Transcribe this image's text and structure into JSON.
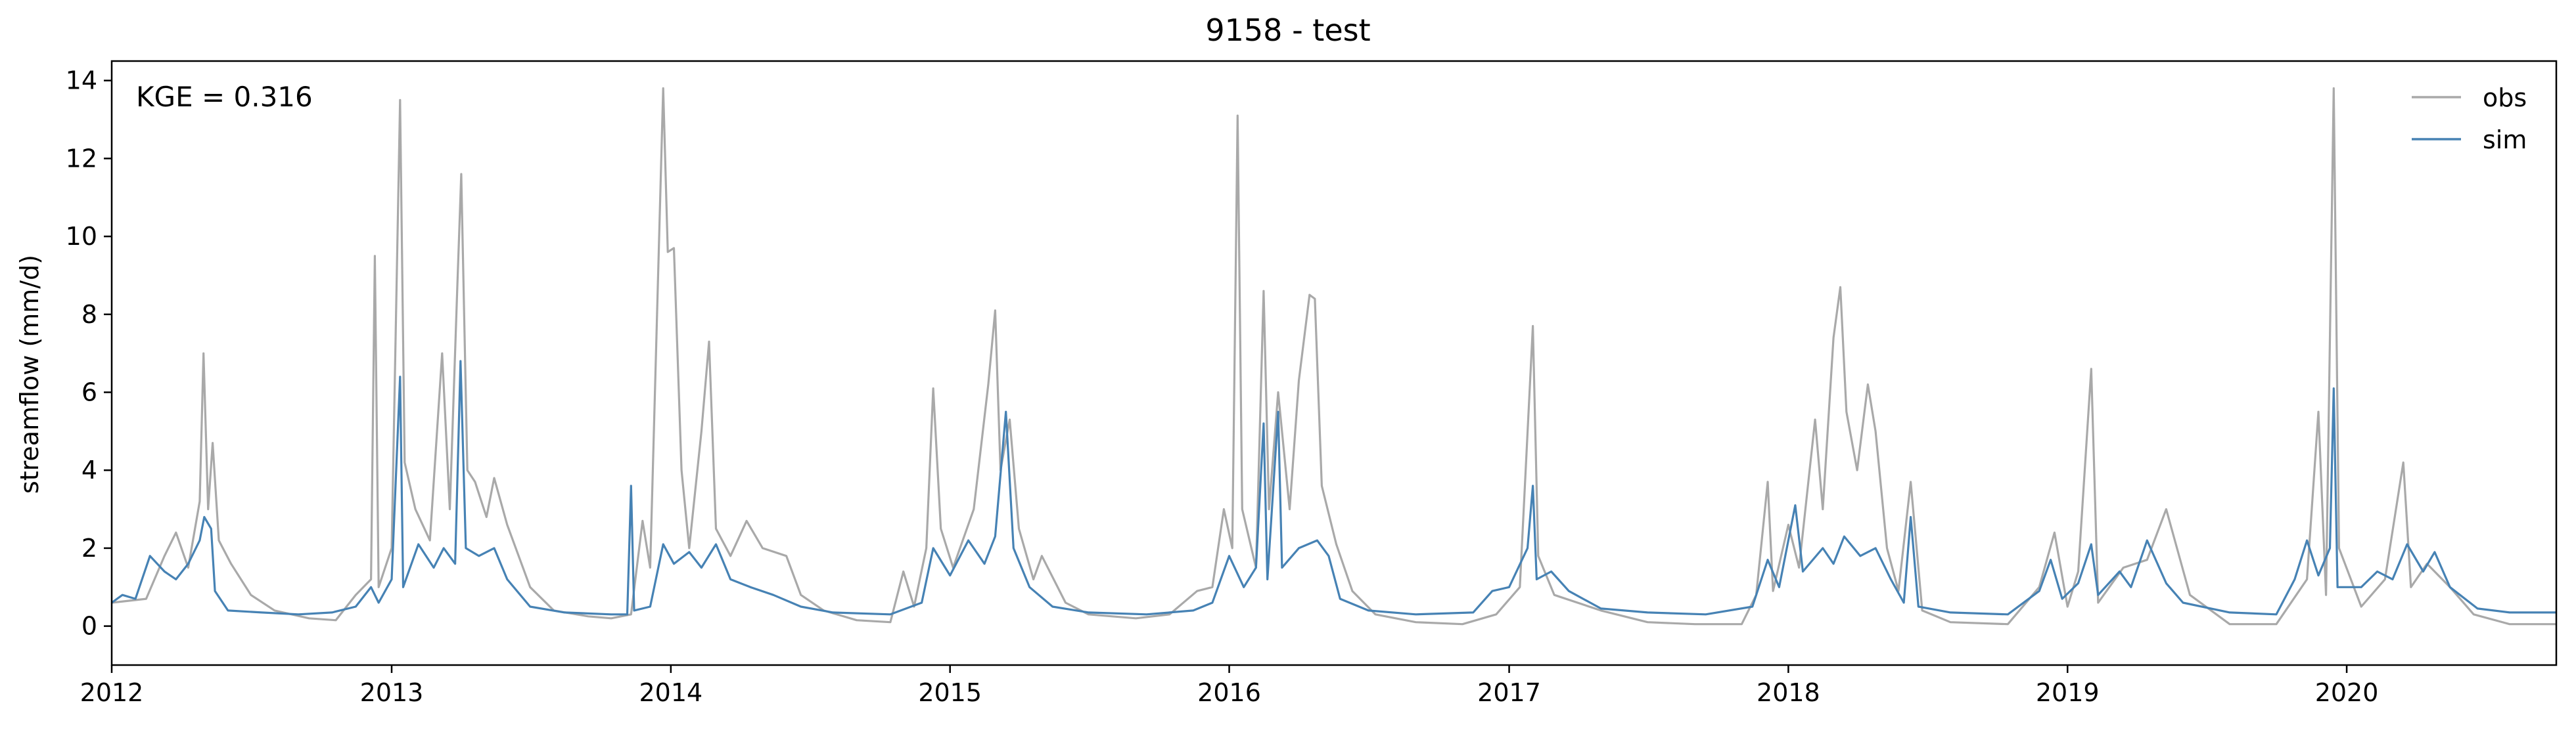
{
  "chart_data": {
    "type": "line",
    "title": "9158 - test",
    "xlabel": "",
    "ylabel": "streamflow (mm/d)",
    "annotation": "KGE = 0.316",
    "xlim": [
      "2012-01-01",
      "2020-10-01"
    ],
    "ylim": [
      -1,
      14.5
    ],
    "x_ticks": [
      "2012",
      "2013",
      "2014",
      "2015",
      "2016",
      "2017",
      "2018",
      "2019",
      "2020"
    ],
    "y_ticks": [
      0,
      2,
      4,
      6,
      8,
      10,
      12,
      14
    ],
    "grid": false,
    "legend": "top-right",
    "series": [
      {
        "name": "obs",
        "color": "#a9a9a9",
        "points": [
          [
            "2012-01-01",
            0.6
          ],
          [
            "2012-02-15",
            0.7
          ],
          [
            "2012-03-10",
            1.8
          ],
          [
            "2012-03-25",
            2.4
          ],
          [
            "2012-04-10",
            1.5
          ],
          [
            "2012-04-25",
            3.2
          ],
          [
            "2012-04-30",
            7.0
          ],
          [
            "2012-05-06",
            3.0
          ],
          [
            "2012-05-12",
            4.7
          ],
          [
            "2012-05-20",
            2.2
          ],
          [
            "2012-06-05",
            1.6
          ],
          [
            "2012-07-01",
            0.8
          ],
          [
            "2012-08-01",
            0.4
          ],
          [
            "2012-09-15",
            0.2
          ],
          [
            "2012-10-20",
            0.15
          ],
          [
            "2012-11-15",
            0.8
          ],
          [
            "2012-12-05",
            1.2
          ],
          [
            "2012-12-10",
            9.5
          ],
          [
            "2012-12-15",
            1.0
          ],
          [
            "2013-01-01",
            2.0
          ],
          [
            "2013-01-12",
            13.5
          ],
          [
            "2013-01-18",
            4.2
          ],
          [
            "2013-02-01",
            3.0
          ],
          [
            "2013-02-20",
            2.2
          ],
          [
            "2013-03-08",
            7.0
          ],
          [
            "2013-03-18",
            3.0
          ],
          [
            "2013-03-28",
            8.8
          ],
          [
            "2013-04-02",
            11.6
          ],
          [
            "2013-04-10",
            4.0
          ],
          [
            "2013-04-20",
            3.7
          ],
          [
            "2013-05-05",
            2.8
          ],
          [
            "2013-05-15",
            3.8
          ],
          [
            "2013-06-01",
            2.6
          ],
          [
            "2013-07-01",
            1.0
          ],
          [
            "2013-08-01",
            0.4
          ],
          [
            "2013-09-15",
            0.25
          ],
          [
            "2013-10-15",
            0.2
          ],
          [
            "2013-11-10",
            0.3
          ],
          [
            "2013-11-25",
            2.7
          ],
          [
            "2013-12-05",
            1.5
          ],
          [
            "2013-12-22",
            13.8
          ],
          [
            "2013-12-28",
            9.6
          ],
          [
            "2014-01-05",
            9.7
          ],
          [
            "2014-01-15",
            4.0
          ],
          [
            "2014-01-25",
            2.0
          ],
          [
            "2014-02-10",
            5.0
          ],
          [
            "2014-02-20",
            7.3
          ],
          [
            "2014-03-01",
            2.5
          ],
          [
            "2014-03-20",
            1.8
          ],
          [
            "2014-04-10",
            2.7
          ],
          [
            "2014-05-01",
            2.0
          ],
          [
            "2014-06-01",
            1.8
          ],
          [
            "2014-06-20",
            0.8
          ],
          [
            "2014-07-20",
            0.4
          ],
          [
            "2014-09-01",
            0.15
          ],
          [
            "2014-10-15",
            0.1
          ],
          [
            "2014-11-01",
            1.4
          ],
          [
            "2014-11-15",
            0.5
          ],
          [
            "2014-12-01",
            2.0
          ],
          [
            "2014-12-10",
            6.1
          ],
          [
            "2014-12-20",
            2.5
          ],
          [
            "2015-01-05",
            1.5
          ],
          [
            "2015-02-01",
            3.0
          ],
          [
            "2015-02-20",
            6.2
          ],
          [
            "2015-03-01",
            8.1
          ],
          [
            "2015-03-08",
            4.0
          ],
          [
            "2015-03-20",
            5.3
          ],
          [
            "2015-04-01",
            2.5
          ],
          [
            "2015-04-20",
            1.2
          ],
          [
            "2015-05-01",
            1.8
          ],
          [
            "2015-06-01",
            0.6
          ],
          [
            "2015-07-01",
            0.3
          ],
          [
            "2015-09-01",
            0.2
          ],
          [
            "2015-10-15",
            0.3
          ],
          [
            "2015-11-20",
            0.9
          ],
          [
            "2015-12-10",
            1.0
          ],
          [
            "2015-12-25",
            3.0
          ],
          [
            "2016-01-05",
            2.0
          ],
          [
            "2016-01-12",
            13.1
          ],
          [
            "2016-01-18",
            3.0
          ],
          [
            "2016-02-05",
            1.5
          ],
          [
            "2016-02-15",
            8.6
          ],
          [
            "2016-02-22",
            3.0
          ],
          [
            "2016-03-05",
            6.0
          ],
          [
            "2016-03-20",
            3.0
          ],
          [
            "2016-04-01",
            6.3
          ],
          [
            "2016-04-15",
            8.5
          ],
          [
            "2016-04-22",
            8.4
          ],
          [
            "2016-05-01",
            3.6
          ],
          [
            "2016-05-20",
            2.1
          ],
          [
            "2016-06-10",
            0.9
          ],
          [
            "2016-07-10",
            0.3
          ],
          [
            "2016-09-01",
            0.1
          ],
          [
            "2016-11-01",
            0.05
          ],
          [
            "2016-12-15",
            0.3
          ],
          [
            "2017-01-15",
            1.0
          ],
          [
            "2017-02-01",
            7.7
          ],
          [
            "2017-02-08",
            1.8
          ],
          [
            "2017-03-01",
            0.8
          ],
          [
            "2017-05-01",
            0.4
          ],
          [
            "2017-07-01",
            0.1
          ],
          [
            "2017-09-01",
            0.05
          ],
          [
            "2017-11-01",
            0.05
          ],
          [
            "2017-11-20",
            0.8
          ],
          [
            "2017-12-05",
            3.7
          ],
          [
            "2017-12-12",
            0.9
          ],
          [
            "2018-01-01",
            2.6
          ],
          [
            "2018-01-15",
            1.5
          ],
          [
            "2018-02-05",
            5.3
          ],
          [
            "2018-02-15",
            3.0
          ],
          [
            "2018-03-01",
            7.4
          ],
          [
            "2018-03-10",
            8.7
          ],
          [
            "2018-03-18",
            5.5
          ],
          [
            "2018-04-01",
            4.0
          ],
          [
            "2018-04-15",
            6.2
          ],
          [
            "2018-04-25",
            5.0
          ],
          [
            "2018-05-10",
            2.0
          ],
          [
            "2018-05-25",
            0.9
          ],
          [
            "2018-06-10",
            3.7
          ],
          [
            "2018-06-25",
            0.4
          ],
          [
            "2018-08-01",
            0.1
          ],
          [
            "2018-10-15",
            0.05
          ],
          [
            "2018-11-25",
            1.0
          ],
          [
            "2018-12-15",
            2.4
          ],
          [
            "2019-01-01",
            0.5
          ],
          [
            "2019-01-15",
            1.4
          ],
          [
            "2019-02-01",
            6.6
          ],
          [
            "2019-02-10",
            0.6
          ],
          [
            "2019-03-15",
            1.5
          ],
          [
            "2019-04-15",
            1.7
          ],
          [
            "2019-05-10",
            3.0
          ],
          [
            "2019-06-10",
            0.8
          ],
          [
            "2019-08-01",
            0.05
          ],
          [
            "2019-10-01",
            0.05
          ],
          [
            "2019-11-10",
            1.2
          ],
          [
            "2019-11-25",
            5.5
          ],
          [
            "2019-12-05",
            0.8
          ],
          [
            "2019-12-15",
            13.8
          ],
          [
            "2019-12-22",
            2.0
          ],
          [
            "2020-01-20",
            0.5
          ],
          [
            "2020-02-20",
            1.2
          ],
          [
            "2020-03-15",
            4.2
          ],
          [
            "2020-03-25",
            1.0
          ],
          [
            "2020-04-15",
            1.6
          ],
          [
            "2020-05-15",
            1.0
          ],
          [
            "2020-06-15",
            0.3
          ],
          [
            "2020-08-01",
            0.05
          ],
          [
            "2020-10-01",
            0.05
          ]
        ]
      },
      {
        "name": "sim",
        "color": "#4682b4",
        "points": [
          [
            "2012-01-01",
            0.6
          ],
          [
            "2012-01-15",
            0.8
          ],
          [
            "2012-02-01",
            0.7
          ],
          [
            "2012-02-20",
            1.8
          ],
          [
            "2012-03-10",
            1.4
          ],
          [
            "2012-03-25",
            1.2
          ],
          [
            "2012-04-10",
            1.6
          ],
          [
            "2012-04-25",
            2.2
          ],
          [
            "2012-05-01",
            2.8
          ],
          [
            "2012-05-10",
            2.5
          ],
          [
            "2012-05-15",
            0.9
          ],
          [
            "2012-06-01",
            0.4
          ],
          [
            "2012-07-15",
            0.35
          ],
          [
            "2012-09-01",
            0.3
          ],
          [
            "2012-10-15",
            0.35
          ],
          [
            "2012-11-15",
            0.5
          ],
          [
            "2012-12-05",
            1.0
          ],
          [
            "2012-12-15",
            0.6
          ],
          [
            "2013-01-01",
            1.2
          ],
          [
            "2013-01-12",
            6.4
          ],
          [
            "2013-01-16",
            1.0
          ],
          [
            "2013-02-05",
            2.1
          ],
          [
            "2013-02-25",
            1.5
          ],
          [
            "2013-03-10",
            2.0
          ],
          [
            "2013-03-25",
            1.6
          ],
          [
            "2013-04-01",
            6.8
          ],
          [
            "2013-04-08",
            2.0
          ],
          [
            "2013-04-25",
            1.8
          ],
          [
            "2013-05-15",
            2.0
          ],
          [
            "2013-06-01",
            1.2
          ],
          [
            "2013-07-01",
            0.5
          ],
          [
            "2013-08-15",
            0.35
          ],
          [
            "2013-10-15",
            0.3
          ],
          [
            "2013-11-05",
            0.3
          ],
          [
            "2013-11-10",
            3.6
          ],
          [
            "2013-11-14",
            0.4
          ],
          [
            "2013-12-05",
            0.5
          ],
          [
            "2013-12-22",
            2.1
          ],
          [
            "2014-01-05",
            1.6
          ],
          [
            "2014-01-25",
            1.9
          ],
          [
            "2014-02-10",
            1.5
          ],
          [
            "2014-03-01",
            2.1
          ],
          [
            "2014-03-20",
            1.2
          ],
          [
            "2014-04-15",
            1.0
          ],
          [
            "2014-05-15",
            0.8
          ],
          [
            "2014-06-20",
            0.5
          ],
          [
            "2014-08-01",
            0.35
          ],
          [
            "2014-10-15",
            0.3
          ],
          [
            "2014-11-25",
            0.6
          ],
          [
            "2014-12-10",
            2.0
          ],
          [
            "2015-01-01",
            1.3
          ],
          [
            "2015-01-25",
            2.2
          ],
          [
            "2015-02-15",
            1.6
          ],
          [
            "2015-03-01",
            2.3
          ],
          [
            "2015-03-15",
            5.5
          ],
          [
            "2015-03-25",
            2.0
          ],
          [
            "2015-04-15",
            1.0
          ],
          [
            "2015-05-15",
            0.5
          ],
          [
            "2015-07-01",
            0.35
          ],
          [
            "2015-09-15",
            0.3
          ],
          [
            "2015-11-15",
            0.4
          ],
          [
            "2015-12-10",
            0.6
          ],
          [
            "2016-01-01",
            1.8
          ],
          [
            "2016-01-20",
            1.0
          ],
          [
            "2016-02-05",
            1.5
          ],
          [
            "2016-02-15",
            5.2
          ],
          [
            "2016-02-20",
            1.2
          ],
          [
            "2016-03-05",
            5.5
          ],
          [
            "2016-03-10",
            1.5
          ],
          [
            "2016-04-01",
            2.0
          ],
          [
            "2016-04-25",
            2.2
          ],
          [
            "2016-05-10",
            1.8
          ],
          [
            "2016-05-25",
            0.7
          ],
          [
            "2016-07-01",
            0.4
          ],
          [
            "2016-09-01",
            0.3
          ],
          [
            "2016-11-15",
            0.35
          ],
          [
            "2016-12-10",
            0.9
          ],
          [
            "2017-01-01",
            1.0
          ],
          [
            "2017-01-25",
            2.0
          ],
          [
            "2017-02-01",
            3.6
          ],
          [
            "2017-02-06",
            1.2
          ],
          [
            "2017-02-25",
            1.4
          ],
          [
            "2017-03-20",
            0.9
          ],
          [
            "2017-05-01",
            0.45
          ],
          [
            "2017-07-01",
            0.35
          ],
          [
            "2017-09-15",
            0.3
          ],
          [
            "2017-11-15",
            0.5
          ],
          [
            "2017-12-05",
            1.7
          ],
          [
            "2017-12-20",
            1.0
          ],
          [
            "2018-01-10",
            3.1
          ],
          [
            "2018-01-20",
            1.4
          ],
          [
            "2018-02-15",
            2.0
          ],
          [
            "2018-03-01",
            1.6
          ],
          [
            "2018-03-15",
            2.3
          ],
          [
            "2018-04-05",
            1.8
          ],
          [
            "2018-04-25",
            2.0
          ],
          [
            "2018-05-15",
            1.2
          ],
          [
            "2018-06-01",
            0.6
          ],
          [
            "2018-06-10",
            2.8
          ],
          [
            "2018-06-20",
            0.5
          ],
          [
            "2018-08-01",
            0.35
          ],
          [
            "2018-10-15",
            0.3
          ],
          [
            "2018-11-25",
            0.9
          ],
          [
            "2018-12-10",
            1.7
          ],
          [
            "2018-12-25",
            0.7
          ],
          [
            "2019-01-15",
            1.1
          ],
          [
            "2019-02-01",
            2.1
          ],
          [
            "2019-02-10",
            0.8
          ],
          [
            "2019-03-10",
            1.4
          ],
          [
            "2019-03-25",
            1.0
          ],
          [
            "2019-04-15",
            2.2
          ],
          [
            "2019-05-10",
            1.1
          ],
          [
            "2019-06-01",
            0.6
          ],
          [
            "2019-08-01",
            0.35
          ],
          [
            "2019-10-01",
            0.3
          ],
          [
            "2019-10-25",
            1.2
          ],
          [
            "2019-11-10",
            2.2
          ],
          [
            "2019-11-25",
            1.3
          ],
          [
            "2019-12-10",
            2.0
          ],
          [
            "2019-12-15",
            6.1
          ],
          [
            "2019-12-20",
            1.0
          ],
          [
            "2020-01-20",
            1.0
          ],
          [
            "2020-02-10",
            1.4
          ],
          [
            "2020-03-01",
            1.2
          ],
          [
            "2020-03-20",
            2.1
          ],
          [
            "2020-04-10",
            1.4
          ],
          [
            "2020-04-25",
            1.9
          ],
          [
            "2020-05-15",
            1.0
          ],
          [
            "2020-06-20",
            0.45
          ],
          [
            "2020-08-01",
            0.35
          ],
          [
            "2020-10-01",
            0.35
          ]
        ]
      }
    ]
  }
}
